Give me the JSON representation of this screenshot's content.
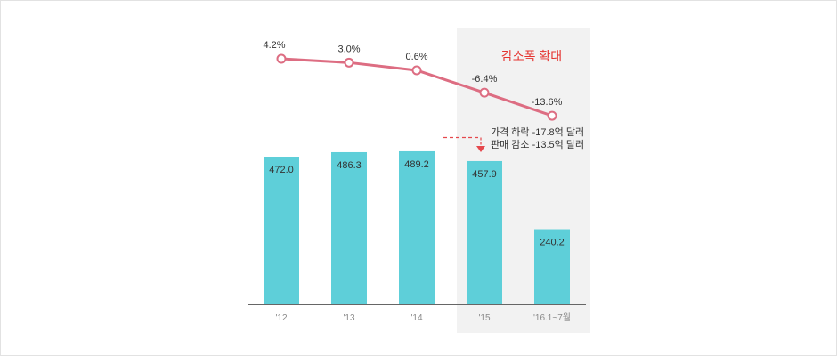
{
  "chart_data": {
    "type": "bar",
    "categories": [
      "'12",
      "'13",
      "'14",
      "'15",
      "'16.1~7월"
    ],
    "series": [
      {
        "name": "bars",
        "type": "bar",
        "values": [
          472.0,
          486.3,
          489.2,
          457.9,
          240.2
        ],
        "labels": [
          "472.0",
          "486.3",
          "489.2",
          "457.9",
          "240.2"
        ]
      },
      {
        "name": "growth",
        "type": "line",
        "values": [
          4.2,
          3.0,
          0.6,
          -6.4,
          -13.6
        ],
        "labels": [
          "4.2%",
          "3.0%",
          "0.6%",
          "-6.4%",
          "-13.6%"
        ]
      }
    ],
    "highlight": {
      "categories": [
        "'15",
        "'16.1~7월"
      ],
      "label": "감소폭 확대"
    },
    "annotations": [
      "가격 하락 -17.8억 달러",
      "판매 감소 -13.5억 달러"
    ]
  },
  "colors": {
    "bar": "#5ecfd9",
    "line": "#dd6d82",
    "highlight_bg": "#f2f2f2",
    "highlight_text": "#e5322e",
    "arrow": "#e5484d",
    "axis": "#666666",
    "tick": "#8a8a8a",
    "label": "#333333"
  }
}
